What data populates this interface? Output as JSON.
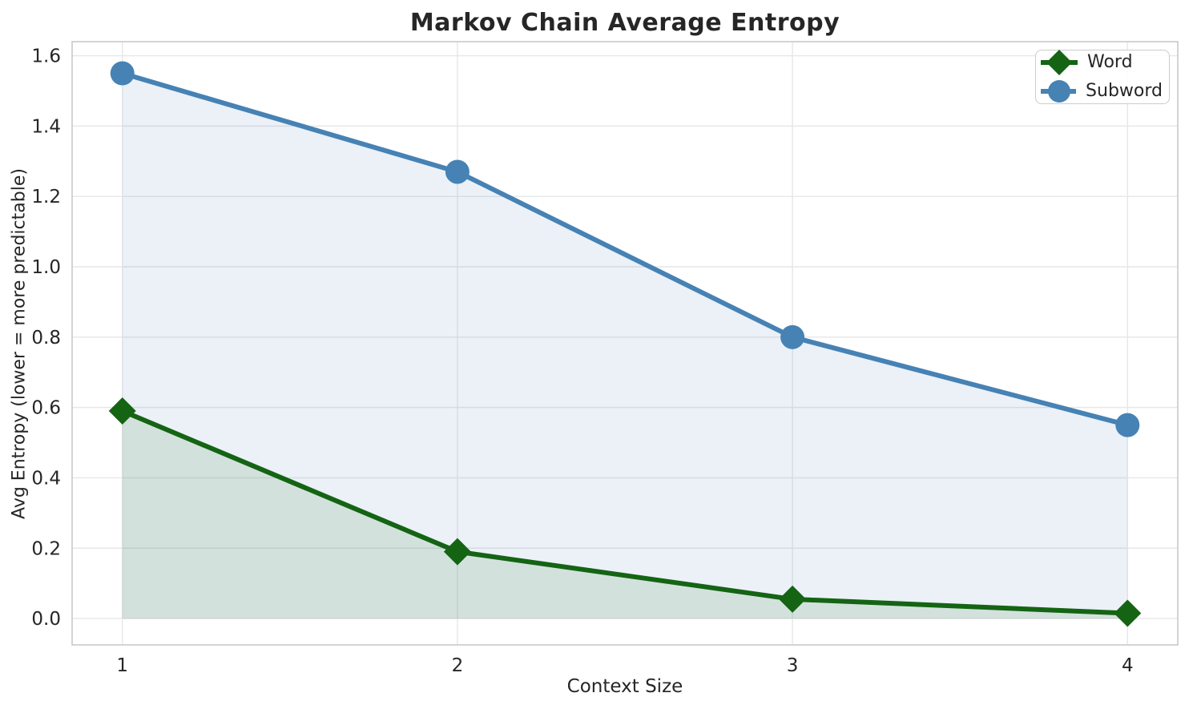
{
  "chart_data": {
    "type": "line",
    "title": "Markov Chain Average Entropy",
    "xlabel": "Context Size",
    "ylabel": "Avg Entropy (lower = more predictable)",
    "x": [
      1,
      2,
      3,
      4
    ],
    "series": [
      {
        "name": "Word",
        "marker": "diamond",
        "color": "#146414",
        "values": [
          0.59,
          0.19,
          0.055,
          0.015
        ]
      },
      {
        "name": "Subword",
        "marker": "circle",
        "color": "#4682b4",
        "values": [
          1.55,
          1.27,
          0.8,
          0.55
        ]
      }
    ],
    "xticks": [
      1,
      2,
      3,
      4
    ],
    "yticks": [
      "0.0",
      "0.2",
      "0.4",
      "0.6",
      "0.8",
      "1.0",
      "1.2",
      "1.4",
      "1.6"
    ],
    "xlim": [
      0.85,
      4.15
    ],
    "ylim": [
      -0.075,
      1.64
    ],
    "grid": true,
    "legend": {
      "position": "top-right"
    },
    "fill_alpha": 0.11,
    "line_width": 6,
    "marker_size": 17,
    "style": {
      "grid_color": "#e7e7e7",
      "spine_color": "#c9c9c9",
      "text_color": "#262626",
      "background": "#ffffff"
    }
  }
}
